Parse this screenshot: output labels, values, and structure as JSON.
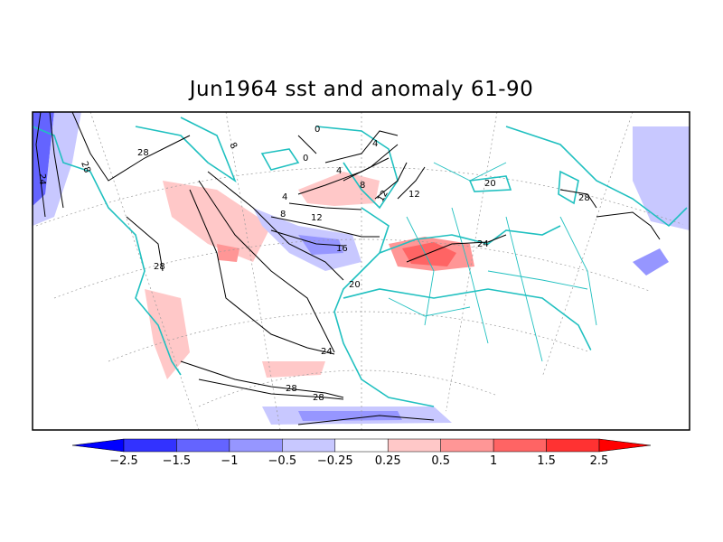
{
  "title": "Jun1964 sst and anomaly 61-90",
  "contour_labels": [
    "28",
    "28",
    "24",
    "28",
    "8",
    "0",
    "0",
    "4",
    "4",
    "8",
    "12",
    "12",
    "4",
    "8",
    "12",
    "16",
    "20",
    "24",
    "28",
    "28",
    "24",
    "20",
    "28"
  ],
  "colorbar": {
    "ticks": [
      "-2.5",
      "-1.5",
      "-1",
      "-0.5",
      "-0.25",
      "0.25",
      "0.5",
      "1",
      "1.5",
      "2.5"
    ],
    "colors": [
      "#0000ff",
      "#3232ff",
      "#6464ff",
      "#9696ff",
      "#c8c8ff",
      "#ffffff",
      "#ffc8c8",
      "#ff9696",
      "#ff6464",
      "#ff3232",
      "#ff0000"
    ]
  },
  "colors": {
    "coast": "#20c0c0",
    "contour": "#000000",
    "grid": "#999999"
  }
}
